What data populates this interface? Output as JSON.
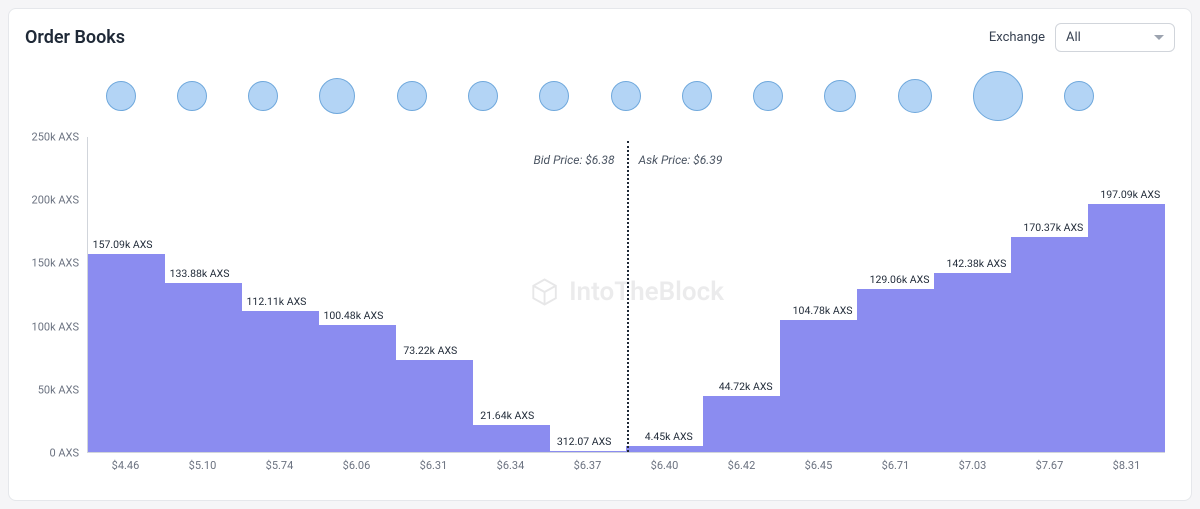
{
  "title": "Order Books",
  "exchange_filter": {
    "label": "Exchange",
    "value": "All"
  },
  "bubbles": {
    "count": 14,
    "sizes": [
      30,
      30,
      30,
      36,
      30,
      30,
      30,
      30,
      30,
      30,
      32,
      34,
      50,
      30
    ],
    "fill": "#b3d4f5",
    "stroke": "#6fa8dc"
  },
  "chart": {
    "type": "orderbook-depth-bar",
    "bar_color": "#8b8cf0",
    "y_axis": {
      "max": 250000,
      "ticks": [
        0,
        50000,
        100000,
        150000,
        200000,
        250000
      ],
      "tick_labels": [
        "0 AXS",
        "50k AXS",
        "100k AXS",
        "150k AXS",
        "200k AXS",
        "250k AXS"
      ]
    },
    "bid_price_label": "Bid Price: $6.38",
    "ask_price_label": "Ask Price: $6.39",
    "bids": [
      {
        "price": "$4.46",
        "value": 157090,
        "label": "157.09k AXS"
      },
      {
        "price": "$5.10",
        "value": 133880,
        "label": "133.88k AXS"
      },
      {
        "price": "$5.74",
        "value": 112110,
        "label": "112.11k AXS"
      },
      {
        "price": "$6.06",
        "value": 100480,
        "label": "100.48k AXS"
      },
      {
        "price": "$6.31",
        "value": 73220,
        "label": "73.22k AXS"
      },
      {
        "price": "$6.34",
        "value": 21640,
        "label": "21.64k AXS"
      },
      {
        "price": "$6.37",
        "value": 312.07,
        "label": "312.07 AXS"
      }
    ],
    "asks": [
      {
        "price": "$6.40",
        "value": 4450,
        "label": "4.45k AXS"
      },
      {
        "price": "$6.42",
        "value": 44720,
        "label": "44.72k AXS"
      },
      {
        "price": "$6.45",
        "value": 104780,
        "label": "104.78k AXS"
      },
      {
        "price": "$6.71",
        "value": 129060,
        "label": "129.06k AXS"
      },
      {
        "price": "$7.03",
        "value": 142380,
        "label": "142.38k AXS"
      },
      {
        "price": "$7.67",
        "value": 170370,
        "label": "170.37k AXS"
      },
      {
        "price": "$8.31",
        "value": 197090,
        "label": "197.09k AXS"
      }
    ],
    "watermark": "IntoTheBlock"
  }
}
